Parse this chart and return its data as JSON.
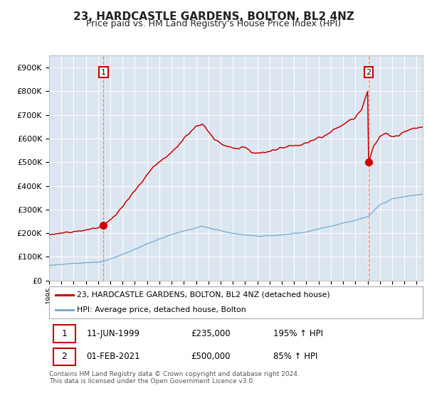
{
  "title": "23, HARDCASTLE GARDENS, BOLTON, BL2 4NZ",
  "subtitle": "Price paid vs. HM Land Registry's House Price Index (HPI)",
  "background_color": "#dce6f0",
  "plot_bg_color": "#dce6f0",
  "figure_bg_color": "#ffffff",
  "red_line_color": "#cc0000",
  "blue_line_color": "#7aaed6",
  "grid_color": "#ffffff",
  "marker_color": "#cc0000",
  "dashed_line_color": "#e88080",
  "ylim": [
    0,
    950000
  ],
  "ytick_labels": [
    "£0",
    "£100K",
    "£200K",
    "£300K",
    "£400K",
    "£500K",
    "£600K",
    "£700K",
    "£800K",
    "£900K"
  ],
  "ytick_values": [
    0,
    100000,
    200000,
    300000,
    400000,
    500000,
    600000,
    700000,
    800000,
    900000
  ],
  "sale1_date": 1999.442,
  "sale1_price": 235000,
  "sale2_date": 2021.083,
  "sale2_price": 500000,
  "legend_line1": "23, HARDCASTLE GARDENS, BOLTON, BL2 4NZ (detached house)",
  "legend_line2": "HPI: Average price, detached house, Bolton",
  "footer": "Contains HM Land Registry data © Crown copyright and database right 2024.\nThis data is licensed under the Open Government Licence v3.0.",
  "xstart": 1995.0,
  "xend": 2025.5,
  "ann1_box_label": "1",
  "ann1_text1": "11-JUN-1999",
  "ann1_text2": "£235,000",
  "ann1_text3": "195% ↑ HPI",
  "ann2_box_label": "2",
  "ann2_text1": "01-FEB-2021",
  "ann2_text2": "£500,000",
  "ann2_text3": "85% ↑ HPI"
}
